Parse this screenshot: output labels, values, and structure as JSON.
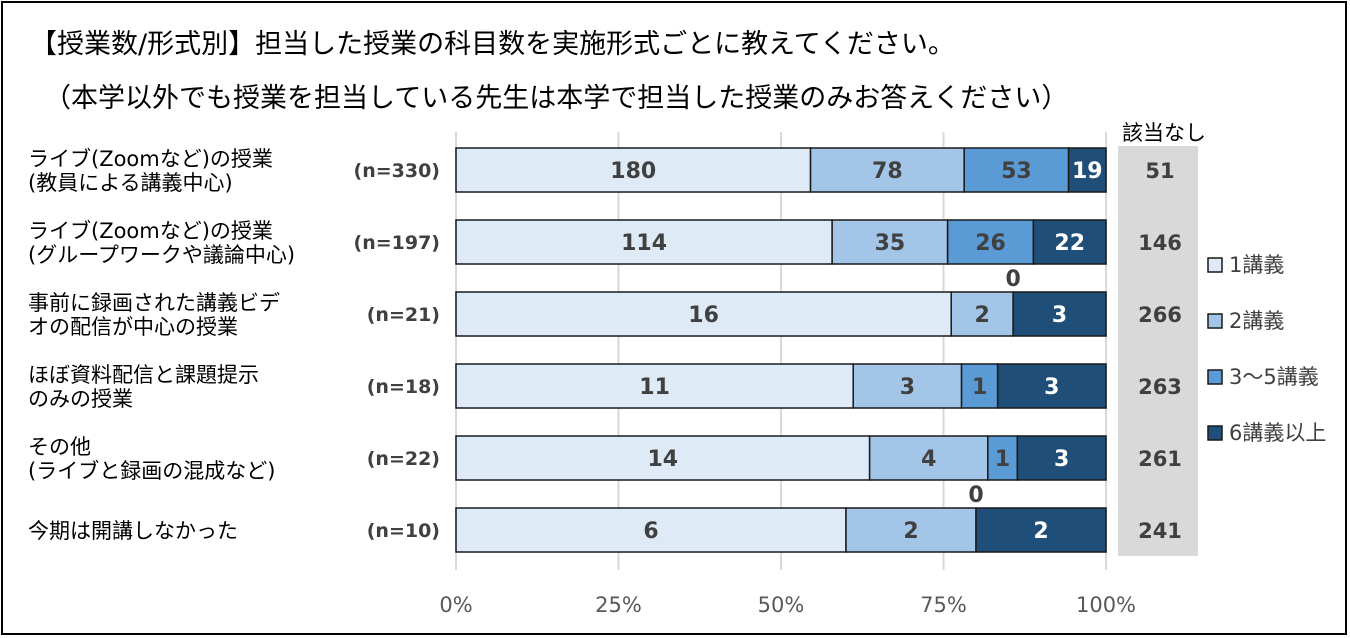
{
  "title_line1": "【授業数/形式別】担当した授業の科目数を実施形式ごとに教えてください。",
  "title_line2": "（本学以外でも授業を担当している先生は本学で担当した授業のみお答えください）",
  "chart_data": {
    "type": "bar",
    "orientation": "horizontal",
    "stacked": "percent",
    "categories": [
      [
        "ライブ(Zoomなど)の授業",
        "(教員による講義中心)"
      ],
      [
        "ライブ(Zoomなど)の授業",
        "(グループワークや議論中心)"
      ],
      [
        "事前に録画された講義ビデ",
        "オの配信が中心の授業"
      ],
      [
        "ほぼ資料配信と課題提示",
        "のみの授業"
      ],
      [
        "その他",
        "(ライブと録画の混成など)"
      ],
      [
        "今期は開講しなかった"
      ]
    ],
    "n_labels": [
      "(n=330)",
      "(n=197)",
      "(n=21)",
      "(n=18)",
      "(n=22)",
      "(n=10)"
    ],
    "series": [
      {
        "name": "1講義",
        "color": "#deebf7",
        "values": [
          180,
          114,
          16,
          11,
          14,
          6
        ]
      },
      {
        "name": "2講義",
        "color": "#a3c6e8",
        "values": [
          78,
          35,
          2,
          3,
          4,
          2
        ]
      },
      {
        "name": "3〜5講義",
        "color": "#5b9bd5",
        "values": [
          53,
          26,
          0,
          1,
          1,
          0
        ]
      },
      {
        "name": "6講義以上",
        "color": "#1f4e79",
        "values": [
          19,
          22,
          3,
          3,
          3,
          2
        ]
      }
    ],
    "none_header": "該当なし",
    "none_values": [
      51,
      146,
      266,
      263,
      261,
      241
    ],
    "xticks": [
      "0%",
      "25%",
      "50%",
      "75%",
      "100%"
    ],
    "xlim": [
      0,
      100
    ],
    "grid": true,
    "legend_position": "right"
  }
}
